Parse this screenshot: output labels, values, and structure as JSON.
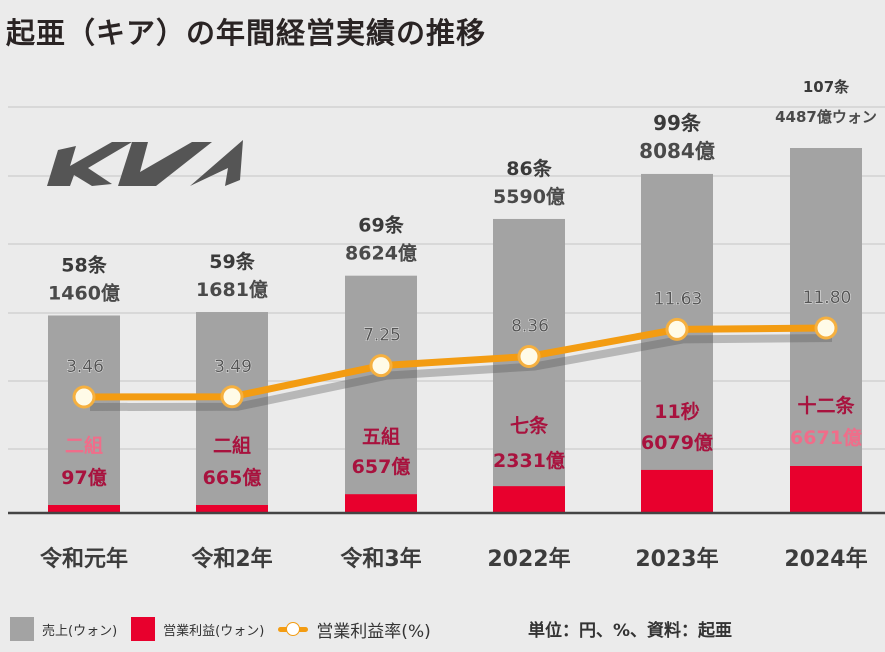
{
  "title": "起亜（キア）の年間経営実績の推移",
  "logo": "KIA",
  "legend": {
    "sales": "売上(ウォン)",
    "profit": "営業利益(ウォン)",
    "rate": "営業利益率(%)"
  },
  "unit_note": "単位：円、%、資料：起亜",
  "colors": {
    "background": "#ebebeb",
    "sales_bar": "#a3a3a3",
    "profit_bar": "#e8002d",
    "rate_line": "#f39c12",
    "profit_label": "#a8123e",
    "profit_label_light": "#f06d8a",
    "sales_label": "#4a4a4a"
  },
  "chart_data": {
    "type": "bar",
    "title": "起亜（キア）の年間経営実績の推移",
    "categories": [
      "令和元年",
      "令和2年",
      "令和3年",
      "2022年",
      "2023年",
      "2024年"
    ],
    "series": [
      {
        "name": "売上(ウォン)",
        "type": "bar",
        "values_trillion_won": [
          58.146,
          59.1681,
          69.8624,
          86.559,
          99.8084,
          107.4487
        ],
        "labels_line1": [
          "58条",
          "59条",
          "69条",
          "86条",
          "99条",
          "107条"
        ],
        "labels_line2": [
          "1460億",
          "1681億",
          "8624億",
          "5590億",
          "8084億",
          "4487億ウォン"
        ]
      },
      {
        "name": "営業利益(ウォン)",
        "type": "bar",
        "values_trillion_won": [
          2.0097,
          2.0665,
          5.0657,
          7.2331,
          11.6079,
          12.6671
        ],
        "labels_line1": [
          "二組",
          "二組",
          "五組",
          "七条",
          "11秒",
          "十二条"
        ],
        "labels_line2": [
          "97億",
          "665億",
          "657億",
          "2331億",
          "6079億",
          "6671億"
        ]
      },
      {
        "name": "営業利益率(%)",
        "type": "line",
        "values": [
          3.46,
          3.49,
          7.25,
          8.36,
          11.63,
          11.8
        ],
        "labels": [
          "3.46",
          "3.49",
          "7.25",
          "8.36",
          "11.63",
          "11.80"
        ]
      }
    ],
    "xlabel": "",
    "ylabel": "",
    "grid": true,
    "legend_position": "bottom-left"
  }
}
